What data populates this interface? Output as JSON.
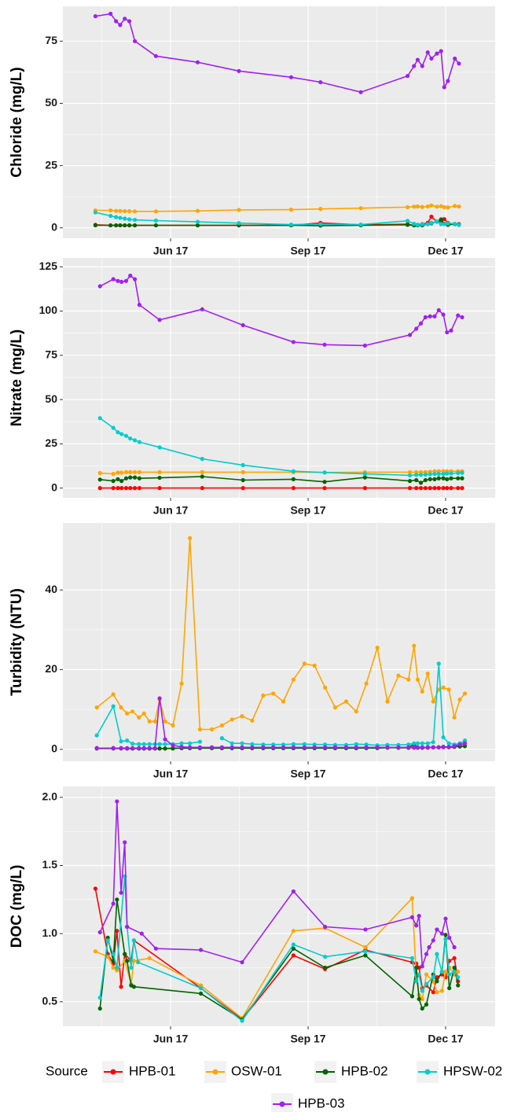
{
  "chart_data": [
    {
      "type": "line",
      "y_label": "Chloride (mg/L)",
      "x": [
        4.36,
        4.69,
        4.81,
        4.9,
        5.0,
        5.1,
        5.22,
        5.68,
        6.59,
        7.49,
        8.63,
        9.27,
        10.15,
        11.17,
        11.31,
        11.39,
        11.49,
        11.61,
        11.69,
        11.81,
        11.9,
        11.97,
        12.05,
        12.2,
        12.29
      ],
      "xlim": [
        3.65,
        13.08
      ],
      "xticks": [
        {
          "value": 6,
          "label": "Jun 17"
        },
        {
          "value": 9,
          "label": "Sep 17"
        },
        {
          "value": 12,
          "label": "Dec 17"
        }
      ],
      "ylim": [
        -4.2,
        89
      ],
      "yticks": [
        0,
        25,
        50,
        75
      ],
      "grid": true,
      "series": [
        {
          "name": "HPB-01",
          "color": "#ff0000",
          "values": [
            1.2,
            1,
            1,
            1,
            1,
            1,
            1,
            1,
            1,
            1,
            1,
            2,
            1.2,
            1.5,
            1,
            1.2,
            1.5,
            2,
            4.5,
            2.5,
            2.5,
            3.5,
            2,
            1.5,
            1.5
          ]
        },
        {
          "name": "OSW-01",
          "color": "#ffa500",
          "values": [
            7,
            7,
            6.8,
            6.8,
            6.7,
            6.7,
            6.6,
            6.6,
            6.8,
            7.2,
            7.3,
            7.6,
            7.9,
            8.3,
            8.5,
            8.6,
            8.4,
            8.6,
            9.0,
            8.5,
            8.7,
            8.3,
            8.2,
            8.8,
            8.6
          ]
        },
        {
          "name": "HPB-02",
          "color": "#006400",
          "values": [
            1,
            1,
            1,
            1,
            1,
            1,
            1,
            1,
            1,
            1,
            1,
            0.9,
            1,
            1.2,
            1,
            1,
            1,
            1.5,
            1.8,
            2.5,
            3.4,
            1.6,
            1.2,
            1.5,
            1.2
          ]
        },
        {
          "name": "HPSW-02",
          "color": "#00cdcd",
          "values": [
            6.2,
            4.8,
            4.3,
            4,
            3.7,
            3.4,
            3.2,
            2.9,
            2.4,
            1.9,
            1.3,
            1.5,
            1.3,
            2.8,
            1.6,
            1.2,
            1.4,
            1.5,
            2.0,
            2.5,
            1.5,
            1.5,
            1.8,
            1.6,
            1.2
          ]
        },
        {
          "name": "HPB-03",
          "color": "#a020f0",
          "values": [
            85,
            86,
            83,
            81.5,
            84,
            83,
            75,
            69,
            66.5,
            63,
            60.5,
            58.5,
            54.5,
            61,
            65,
            67.5,
            65,
            70.5,
            68,
            70,
            71,
            56.5,
            59,
            68,
            66
          ]
        }
      ]
    },
    {
      "type": "line",
      "y_label": "Nitrate (mg/L)",
      "x": [
        4.46,
        4.75,
        4.85,
        4.93,
        5.03,
        5.12,
        5.22,
        5.32,
        5.76,
        6.69,
        7.58,
        8.68,
        9.36,
        10.24,
        11.22,
        11.36,
        11.46,
        11.56,
        11.66,
        11.76,
        11.85,
        11.95,
        12.03,
        12.12,
        12.27,
        12.36
      ],
      "xlim": [
        3.65,
        13.08
      ],
      "xticks": [
        {
          "value": 6,
          "label": "Jun 17"
        },
        {
          "value": 9,
          "label": "Sep 17"
        },
        {
          "value": 12,
          "label": "Dec 17"
        }
      ],
      "ylim": [
        -5.5,
        130
      ],
      "yticks": [
        0,
        25,
        50,
        75,
        100,
        125
      ],
      "grid": true,
      "series": [
        {
          "name": "HPB-01",
          "color": "#ff0000",
          "values": [
            0,
            0,
            0,
            0,
            0,
            0,
            0,
            0,
            0,
            0,
            0,
            0,
            0,
            0,
            0,
            0,
            0,
            0,
            0,
            0,
            0,
            0,
            0,
            0,
            0,
            0
          ]
        },
        {
          "name": "OSW-01",
          "color": "#ffa500",
          "values": [
            8.5,
            8,
            8.7,
            8.7,
            9,
            9,
            9,
            9,
            9,
            9,
            9,
            9,
            8.8,
            9,
            9,
            9,
            9,
            9,
            9.2,
            9.5,
            9.5,
            9.5,
            9.5,
            9.5,
            9.5,
            9.5
          ]
        },
        {
          "name": "HPB-02",
          "color": "#006400",
          "values": [
            4.8,
            4,
            5,
            4,
            5.5,
            6,
            6,
            5.5,
            5.8,
            6.5,
            4.5,
            5,
            3.5,
            6,
            4,
            4.5,
            3,
            4.5,
            5,
            5,
            5.5,
            5.5,
            5,
            5.5,
            5.5,
            5.5
          ]
        },
        {
          "name": "HPSW-02",
          "color": "#00cdcd",
          "values": [
            39.5,
            34,
            31.5,
            30.5,
            29.5,
            28,
            27,
            26,
            23,
            16.5,
            13,
            9.5,
            8.8,
            8,
            7.2,
            7.5,
            7.5,
            7.6,
            7.8,
            8,
            8,
            8,
            8.2,
            8.3,
            8.5,
            8.6
          ]
        },
        {
          "name": "HPB-03",
          "color": "#a020f0",
          "values": [
            114,
            118,
            117,
            116.5,
            117,
            120,
            118,
            103.5,
            95,
            101,
            92,
            82.5,
            81,
            80.5,
            86.5,
            90,
            93,
            96.5,
            97,
            97,
            100.5,
            98,
            88,
            89,
            97.5,
            96.5
          ]
        }
      ]
    },
    {
      "type": "line",
      "y_label": "Turbidity (NTU)",
      "x": [
        4.39,
        4.75,
        4.92,
        5.05,
        5.17,
        5.31,
        5.42,
        5.54,
        5.66,
        5.76,
        5.88,
        6.05,
        6.24,
        6.42,
        6.64,
        6.9,
        7.12,
        7.34,
        7.56,
        7.78,
        8.02,
        8.24,
        8.46,
        8.68,
        8.92,
        9.14,
        9.37,
        9.59,
        9.83,
        10.05,
        10.27,
        10.51,
        10.73,
        10.97,
        11.19,
        11.31,
        11.39,
        11.49,
        11.61,
        11.73,
        11.85,
        11.95,
        12.07,
        12.19,
        12.31,
        12.42
      ],
      "xlim": [
        3.65,
        13.08
      ],
      "xticks": [
        {
          "value": 6,
          "label": "Jun 17"
        },
        {
          "value": 9,
          "label": "Sep 17"
        },
        {
          "value": 12,
          "label": "Dec 17"
        }
      ],
      "ylim": [
        -3,
        56.8
      ],
      "yticks": [
        0,
        20,
        40
      ],
      "grid": true,
      "series": [
        {
          "name": "HPB-01",
          "color": "#ff0000",
          "values": [
            0.3,
            0.3,
            0.3,
            0.2,
            0.2,
            0.2,
            0.2,
            0.2,
            0.2,
            0.2,
            0.2,
            0.3,
            0.3,
            0.3,
            0.3,
            0.3,
            0.3,
            0.3,
            0.3,
            0.3,
            0.3,
            0.3,
            0.3,
            0.3,
            0.3,
            0.3,
            0.3,
            0.3,
            0.3,
            0.3,
            0.4,
            0.5,
            0.5,
            0.4,
            0.4,
            0.4,
            0.4,
            0.4,
            0.4,
            0.5,
            0.5,
            0.6,
            0.5,
            0.6,
            1.0,
            1.5
          ]
        },
        {
          "name": "OSW-01",
          "color": "#ffa500",
          "values": [
            10.5,
            13.8,
            10.5,
            9,
            9.5,
            8,
            9,
            7,
            7,
            12.5,
            7,
            6,
            16.5,
            53,
            5,
            5,
            6,
            7.5,
            8.3,
            7.2,
            13.5,
            14,
            12,
            17.5,
            21.5,
            21,
            15.5,
            10.5,
            12,
            9.5,
            16.5,
            25.5,
            12,
            18.5,
            17.5,
            26,
            17.5,
            14.5,
            19,
            12,
            15,
            15.5,
            15,
            8,
            12.5,
            14
          ]
        },
        {
          "name": "HPB-02",
          "color": "#006400",
          "values": [
            0.2,
            0.2,
            0.2,
            0.2,
            0.2,
            0.2,
            0.2,
            0.2,
            0.2,
            0.2,
            0.2,
            0.2,
            0.3,
            0.3,
            0.3,
            0.3,
            0.3,
            0.3,
            0.3,
            0.3,
            0.3,
            0.3,
            0.3,
            0.3,
            0.3,
            0.3,
            0.3,
            0.3,
            0.3,
            0.3,
            0.3,
            0.3,
            0.4,
            0.4,
            0.4,
            1.3,
            0.4,
            0.4,
            0.5,
            0.5,
            0.5,
            0.6,
            0.6,
            0.7,
            0.7,
            0.8
          ]
        },
        {
          "name": "HPSW-02",
          "color": "#00cdcd",
          "values": [
            3.5,
            10.8,
            2,
            2.2,
            1.4,
            1.3,
            1.3,
            1.3,
            1.3,
            1.3,
            1.3,
            1.3,
            1.5,
            1.5,
            1.9,
            null,
            2.8,
            1.5,
            1.5,
            1.3,
            1.2,
            1.2,
            1.2,
            1.3,
            1.3,
            1.2,
            1.2,
            1.1,
            1.1,
            1.3,
            1.2,
            1.0,
            1.1,
            1.1,
            1.2,
            1.5,
            1.5,
            1.5,
            1.5,
            1.8,
            21.5,
            3,
            1.5,
            1.2,
            1.5,
            2.2
          ]
        },
        {
          "name": "HPB-03",
          "color": "#a020f0",
          "values": [
            0.3,
            0.3,
            0.3,
            0.3,
            0.3,
            0.3,
            0.3,
            0.3,
            0.3,
            12.8,
            2.5,
            1,
            0.6,
            0.5,
            0.5,
            0.5,
            0.5,
            0.5,
            0.5,
            0.5,
            0.5,
            0.5,
            0.5,
            0.5,
            0.5,
            0.5,
            0.5,
            0.5,
            0.5,
            0.5,
            0.5,
            0.5,
            0.5,
            0.5,
            0.5,
            0.5,
            0.5,
            0.5,
            0.5,
            0.5,
            0.5,
            0.5,
            0.6,
            0.8,
            1.2,
            1.5
          ]
        }
      ]
    },
    {
      "type": "line",
      "y_label": "DOC (mg/L)",
      "xlim": [
        3.65,
        13.08
      ],
      "xticks": [
        {
          "value": 6,
          "label": "Jun 17"
        },
        {
          "value": 9,
          "label": "Sep 17"
        },
        {
          "value": 12,
          "label": "Dec 17"
        }
      ],
      "ylim": [
        0.32,
        2.08
      ],
      "yticks": [
        0.5,
        {
          "value": 1,
          "label": "1.0"
        },
        1.5,
        {
          "value": 2,
          "label": "2.0"
        }
      ],
      "grid": true,
      "series": [
        {
          "name": "HPB-01",
          "color": "#ff0000",
          "x": [
            4.36,
            4.63,
            4.75,
            4.83,
            4.92,
            5.0,
            5.14,
            5.2,
            6.66,
            7.56,
            8.68,
            9.37,
            10.25,
            11.27,
            11.36,
            11.42,
            11.49,
            11.58,
            11.73,
            11.81,
            11.92,
            12.0,
            12.08,
            12.19,
            12.27
          ],
          "values": [
            1.33,
            0.85,
            0.78,
            1.02,
            0.61,
            0.85,
            0.8,
            0.95,
            0.6,
            0.37,
            0.84,
            0.74,
            0.88,
            0.79,
            0.78,
            0.75,
            0.6,
            0.62,
            0.57,
            0.68,
            0.7,
            0.68,
            0.8,
            0.82,
            0.65
          ]
        },
        {
          "name": "OSW-01",
          "color": "#ffa500",
          "x": [
            4.36,
            4.63,
            4.75,
            4.83,
            5.0,
            5.14,
            5.2,
            5.54,
            6.66,
            7.56,
            8.68,
            9.37,
            10.25,
            11.27,
            11.36,
            11.42,
            11.49,
            11.58,
            11.73,
            11.81,
            11.92,
            12.0,
            12.08,
            12.19,
            12.27
          ],
          "values": [
            0.87,
            0.83,
            0.75,
            0.73,
            0.8,
            0.63,
            0.8,
            0.82,
            0.62,
            0.38,
            1.02,
            1.04,
            0.9,
            1.26,
            0.68,
            0.55,
            0.52,
            0.7,
            0.65,
            0.57,
            0.58,
            0.72,
            0.75,
            0.7,
            0.72
          ]
        },
        {
          "name": "HPB-02",
          "color": "#006400",
          "x": [
            4.46,
            4.63,
            4.75,
            4.83,
            5.0,
            5.05,
            5.14,
            5.2,
            6.66,
            7.56,
            8.68,
            9.37,
            10.25,
            11.27,
            11.36,
            11.42,
            11.49,
            11.58,
            11.73,
            11.81,
            11.92,
            12.0,
            12.08,
            12.19,
            12.27
          ],
          "values": [
            0.45,
            0.97,
            0.8,
            1.25,
            0.85,
            0.8,
            0.62,
            0.61,
            0.56,
            0.37,
            0.89,
            0.75,
            0.84,
            0.54,
            0.75,
            0.52,
            0.45,
            0.48,
            0.7,
            0.65,
            0.72,
            0.99,
            0.6,
            0.75,
            0.62
          ]
        },
        {
          "name": "HPSW-02",
          "color": "#00cdcd",
          "x": [
            4.46,
            4.63,
            4.75,
            4.83,
            5.0,
            5.05,
            5.14,
            5.2,
            5.29,
            6.66,
            7.56,
            8.68,
            9.37,
            10.25,
            11.27,
            11.36,
            11.42,
            11.49,
            11.58,
            11.73,
            11.81,
            11.92,
            12.0,
            12.08,
            12.19,
            12.27
          ],
          "values": [
            0.53,
            0.95,
            0.85,
            0.75,
            1.42,
            1.05,
            0.75,
            0.95,
            0.79,
            0.6,
            0.36,
            0.92,
            0.83,
            0.87,
            0.82,
            0.65,
            0.7,
            0.58,
            0.63,
            0.68,
            0.85,
            0.72,
            0.96,
            0.7,
            0.72,
            0.68
          ]
        },
        {
          "name": "HPB-03",
          "color": "#a020f0",
          "x": [
            4.46,
            4.75,
            4.83,
            4.92,
            5.0,
            5.05,
            5.37,
            5.68,
            6.66,
            7.56,
            8.68,
            9.37,
            10.25,
            11.27,
            11.36,
            11.42,
            11.49,
            11.58,
            11.64,
            11.73,
            11.81,
            11.92,
            12.0,
            12.08,
            12.19
          ],
          "values": [
            1.01,
            1.22,
            1.97,
            1.3,
            1.67,
            1.05,
            1.0,
            0.89,
            0.88,
            0.79,
            1.31,
            1.05,
            1.03,
            1.12,
            1.06,
            1.13,
            0.76,
            0.85,
            0.9,
            0.95,
            1.03,
            1.0,
            1.11,
            0.97,
            0.9
          ]
        }
      ]
    }
  ],
  "legend_title": "Source"
}
